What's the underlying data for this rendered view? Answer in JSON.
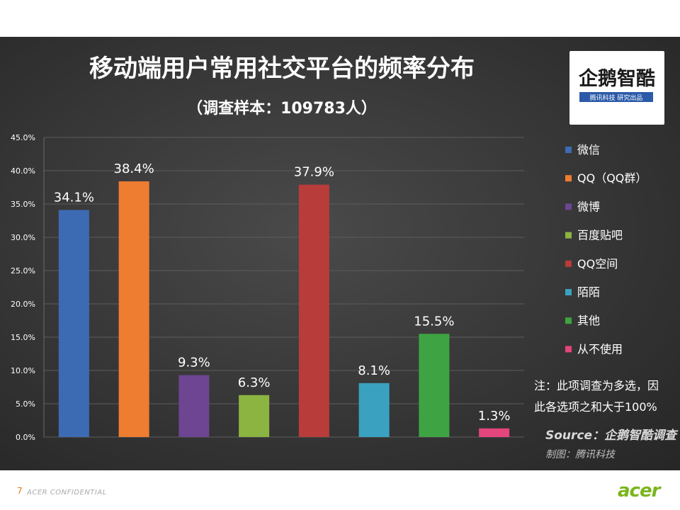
{
  "footer": {
    "slide_number": "7",
    "confidential": "ACER CONFIDENTIAL",
    "brand": "acer"
  },
  "logo": {
    "name": "企鹅智酷",
    "tagline": "腾讯科技 研究出品"
  },
  "note": {
    "line1": "注：此项调查为多选，因",
    "line2": "此各选项之和大于100%"
  },
  "source": {
    "line1": "Source：企鹅智酷调查",
    "line2": "制图：腾讯科技"
  },
  "chart_data": {
    "type": "bar",
    "title": "移动端用户常用社交平台的频率分布",
    "subtitle": "（调查样本：109783人）",
    "ylim": [
      0,
      45
    ],
    "yticks": [
      "0.0%",
      "5.0%",
      "10.0%",
      "15.0%",
      "20.0%",
      "25.0%",
      "30.0%",
      "35.0%",
      "40.0%",
      "45.0%"
    ],
    "grid": true,
    "legend_position": "right",
    "series": [
      {
        "name": "微信",
        "value": 34.1,
        "label": "34.1%",
        "color": "#3d6bb3"
      },
      {
        "name": "QQ（QQ群）",
        "value": 38.4,
        "label": "38.4%",
        "color": "#ee7d31"
      },
      {
        "name": "微博",
        "value": 9.3,
        "label": "9.3%",
        "color": "#6d4593"
      },
      {
        "name": "百度贴吧",
        "value": 6.3,
        "label": "6.3%",
        "color": "#8cb440"
      },
      {
        "name": "QQ空间",
        "value": 37.9,
        "label": "37.9%",
        "color": "#b83c3a"
      },
      {
        "name": "陌陌",
        "value": 8.1,
        "label": "8.1%",
        "color": "#3aa2c0"
      },
      {
        "name": "其他",
        "value": 15.5,
        "label": "15.5%",
        "color": "#3ea443"
      },
      {
        "name": "从不使用",
        "value": 1.3,
        "label": "1.3%",
        "color": "#e3457c"
      }
    ]
  }
}
